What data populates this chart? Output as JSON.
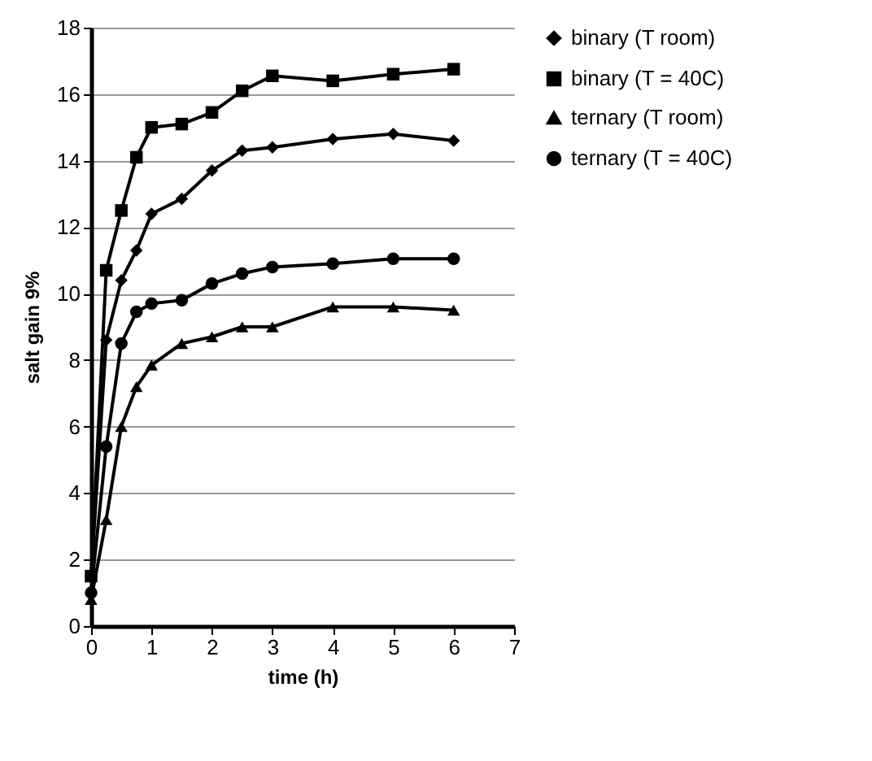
{
  "chart_data": {
    "type": "line",
    "xlabel": "time (h)",
    "ylabel": "salt gain 9%",
    "x": [
      0,
      0.25,
      0.5,
      0.75,
      1,
      1.5,
      2,
      2.5,
      3,
      4,
      5,
      6
    ],
    "series": [
      {
        "name": "binary (T room)",
        "color": "#000000",
        "marker": "diamond",
        "values": [
          1.5,
          8.6,
          10.4,
          11.3,
          12.4,
          12.85,
          13.7,
          14.3,
          14.4,
          14.65,
          14.8,
          14.6
        ]
      },
      {
        "name": "binary (T = 40C)",
        "color": "#000000",
        "marker": "square",
        "values": [
          1.5,
          10.7,
          12.5,
          14.1,
          15.0,
          15.1,
          15.45,
          16.1,
          16.55,
          16.4,
          16.6,
          16.75
        ]
      },
      {
        "name": "ternary (T room)",
        "color": "#000000",
        "marker": "triangle",
        "values": [
          0.8,
          3.2,
          6.0,
          7.2,
          7.85,
          8.5,
          8.7,
          9.0,
          9.0,
          9.6,
          9.6,
          9.5
        ]
      },
      {
        "name": "ternary (T = 40C)",
        "color": "#000000",
        "marker": "circle",
        "values": [
          1.0,
          5.4,
          8.5,
          9.45,
          9.7,
          9.8,
          10.3,
          10.6,
          10.8,
          10.9,
          11.05,
          11.05
        ]
      }
    ],
    "xlim": [
      0,
      7
    ],
    "xticks": [
      0,
      1,
      2,
      3,
      4,
      5,
      6,
      7
    ],
    "ylim": [
      0,
      18
    ],
    "yticks": [
      0,
      2,
      4,
      6,
      8,
      10,
      12,
      14,
      16,
      18
    ],
    "grid": "y",
    "legend": "right",
    "line_style": "solid"
  }
}
